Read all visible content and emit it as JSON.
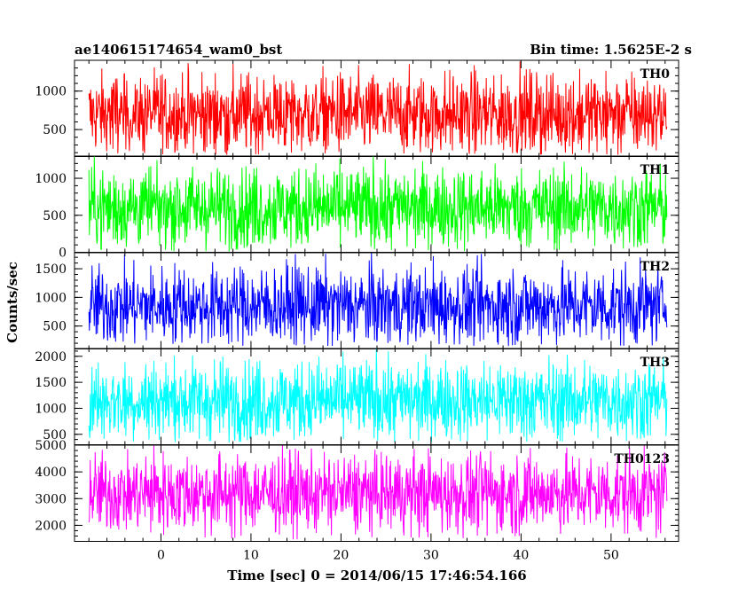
{
  "header": {
    "left_title": "ae140615174654_wam0_bst",
    "right_title": "Bin time: 1.5625E-2 s"
  },
  "chart_data": {
    "type": "line",
    "xlabel": "Time [sec] 0 = 2014/06/15 17:46:54.166",
    "ylabel": "Counts/sec",
    "xlim": [
      -9.6,
      57.5
    ],
    "x_data_range": [
      -8.0,
      56.2
    ],
    "x_ticks": [
      0,
      10,
      20,
      30,
      40,
      50
    ],
    "x_tick_labels": [
      "0",
      "10",
      "20",
      "30",
      "40",
      "50"
    ],
    "panels": [
      {
        "name": "TH0",
        "color": "#ff0000",
        "ylim": [
          150,
          1400
        ],
        "y_ticks": [
          500,
          1000
        ],
        "y_tick_labels": [
          "500",
          "1000"
        ],
        "mean": 700,
        "low": 170,
        "high": 1400
      },
      {
        "name": "TH1",
        "color": "#00ff00",
        "ylim": [
          0,
          1300
        ],
        "y_ticks": [
          0,
          500,
          1000
        ],
        "y_tick_labels": [
          "0",
          "500",
          "1000"
        ],
        "mean": 600,
        "low": 10,
        "high": 1300
      },
      {
        "name": "TH2",
        "color": "#0000ff",
        "ylim": [
          100,
          1780
        ],
        "y_ticks": [
          500,
          1000,
          1500
        ],
        "y_tick_labels": [
          "500",
          "1000",
          "1500"
        ],
        "mean": 850,
        "low": 150,
        "high": 1780
      },
      {
        "name": "TH3",
        "color": "#00ffff",
        "ylim": [
          300,
          2150
        ],
        "y_ticks": [
          500,
          1000,
          1500,
          2000
        ],
        "y_tick_labels": [
          "500",
          "1000",
          "1500",
          "2000"
        ],
        "mean": 1150,
        "low": 330,
        "high": 2150
      },
      {
        "name": "TH0123",
        "color": "#ff00ff",
        "ylim": [
          1400,
          5000
        ],
        "y_ticks": [
          2000,
          3000,
          4000,
          5000
        ],
        "y_tick_labels": [
          "2000",
          "3000",
          "4000",
          "5000"
        ],
        "mean": 3200,
        "low": 1450,
        "high": 5000
      }
    ]
  }
}
